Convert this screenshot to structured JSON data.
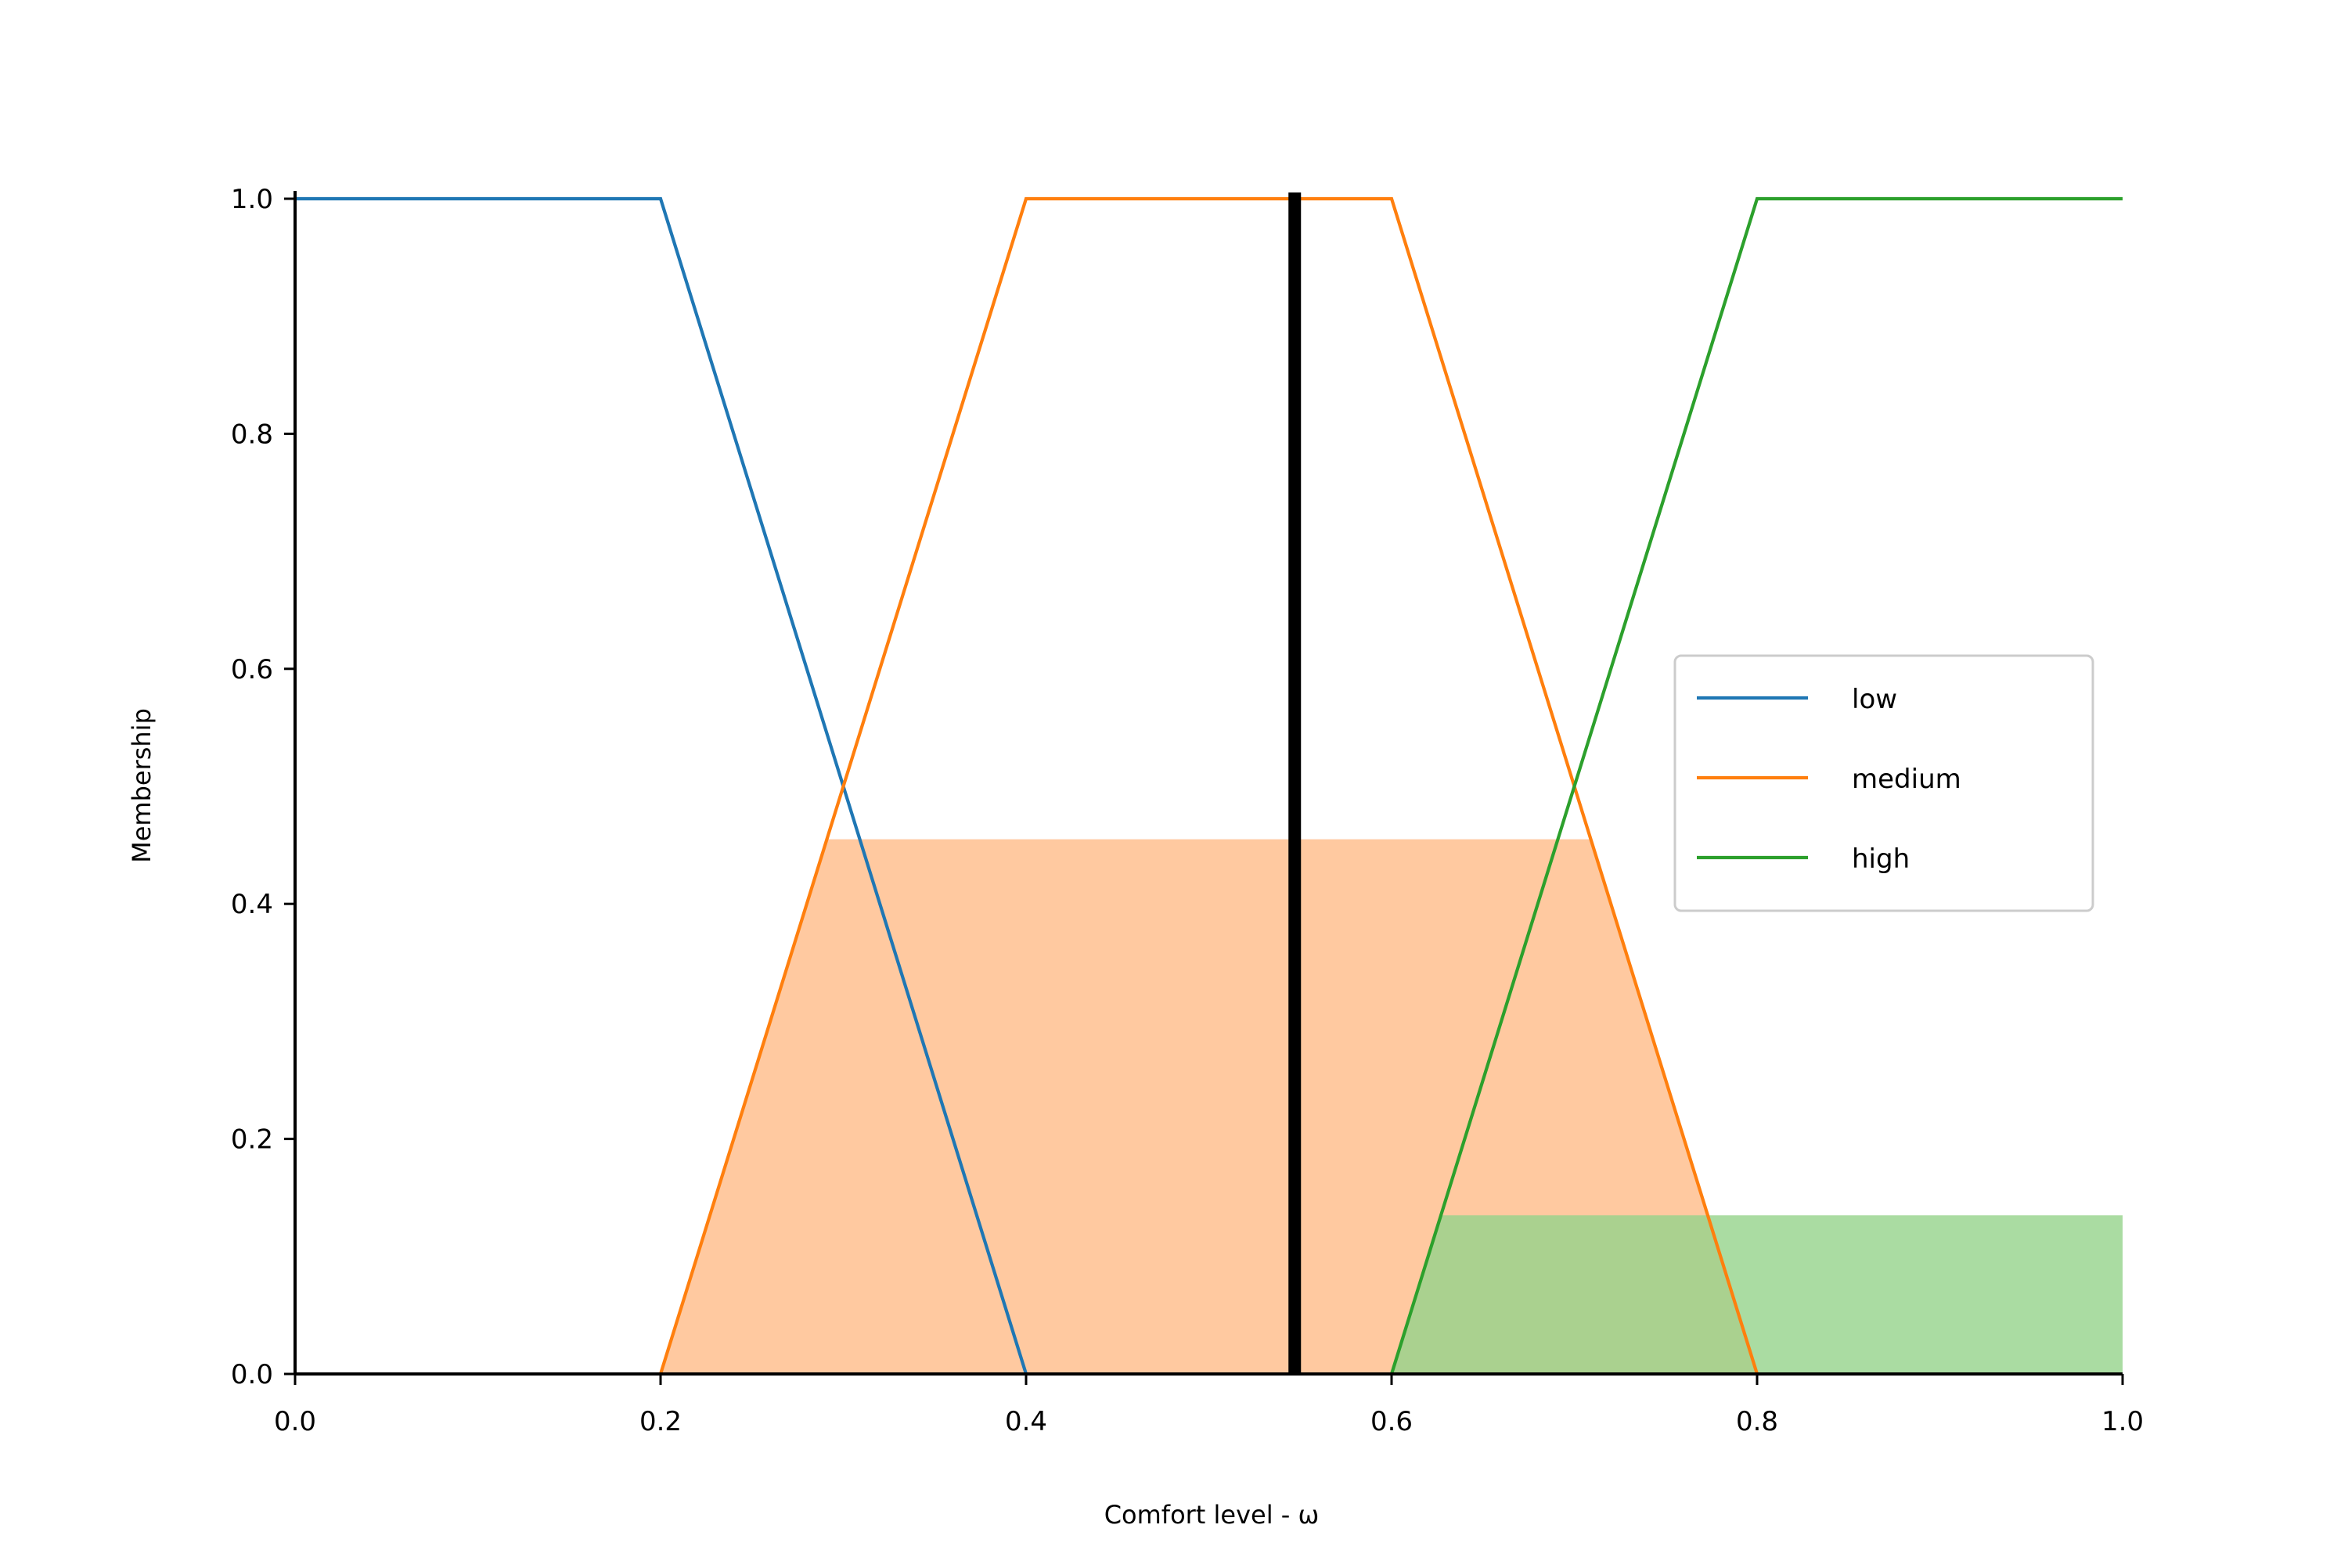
{
  "chart_data": {
    "type": "line",
    "xlabel": "Comfort level - ω",
    "ylabel": "Membership",
    "xlim": [
      0.0,
      1.0
    ],
    "ylim": [
      0.0,
      1.0
    ],
    "x_ticks": [
      "0.0",
      "0.2",
      "0.4",
      "0.6",
      "0.8",
      "1.0"
    ],
    "y_ticks": [
      "0.0",
      "0.2",
      "0.4",
      "0.6",
      "0.8",
      "1.0"
    ],
    "grid": false,
    "legend_position": "center-right",
    "series": [
      {
        "name": "low",
        "color": "#1f77b4",
        "points": [
          [
            0.0,
            1.0
          ],
          [
            0.2,
            1.0
          ],
          [
            0.4,
            0.0
          ]
        ]
      },
      {
        "name": "medium",
        "color": "#ff7f0e",
        "points": [
          [
            0.2,
            0.0
          ],
          [
            0.4,
            1.0
          ],
          [
            0.6,
            1.0
          ],
          [
            0.8,
            0.0
          ]
        ]
      },
      {
        "name": "high",
        "color": "#2ca02c",
        "points": [
          [
            0.6,
            0.0
          ],
          [
            0.8,
            1.0
          ],
          [
            1.0,
            1.0
          ]
        ]
      }
    ],
    "activations": [
      {
        "series": "medium",
        "level": 0.455,
        "color": "#ffbb88",
        "opacity": 0.8
      },
      {
        "series": "high",
        "level": 0.135,
        "color": "#95d38b",
        "opacity": 0.8
      }
    ],
    "marker_line": {
      "x": 0.547,
      "color": "#000000"
    }
  }
}
